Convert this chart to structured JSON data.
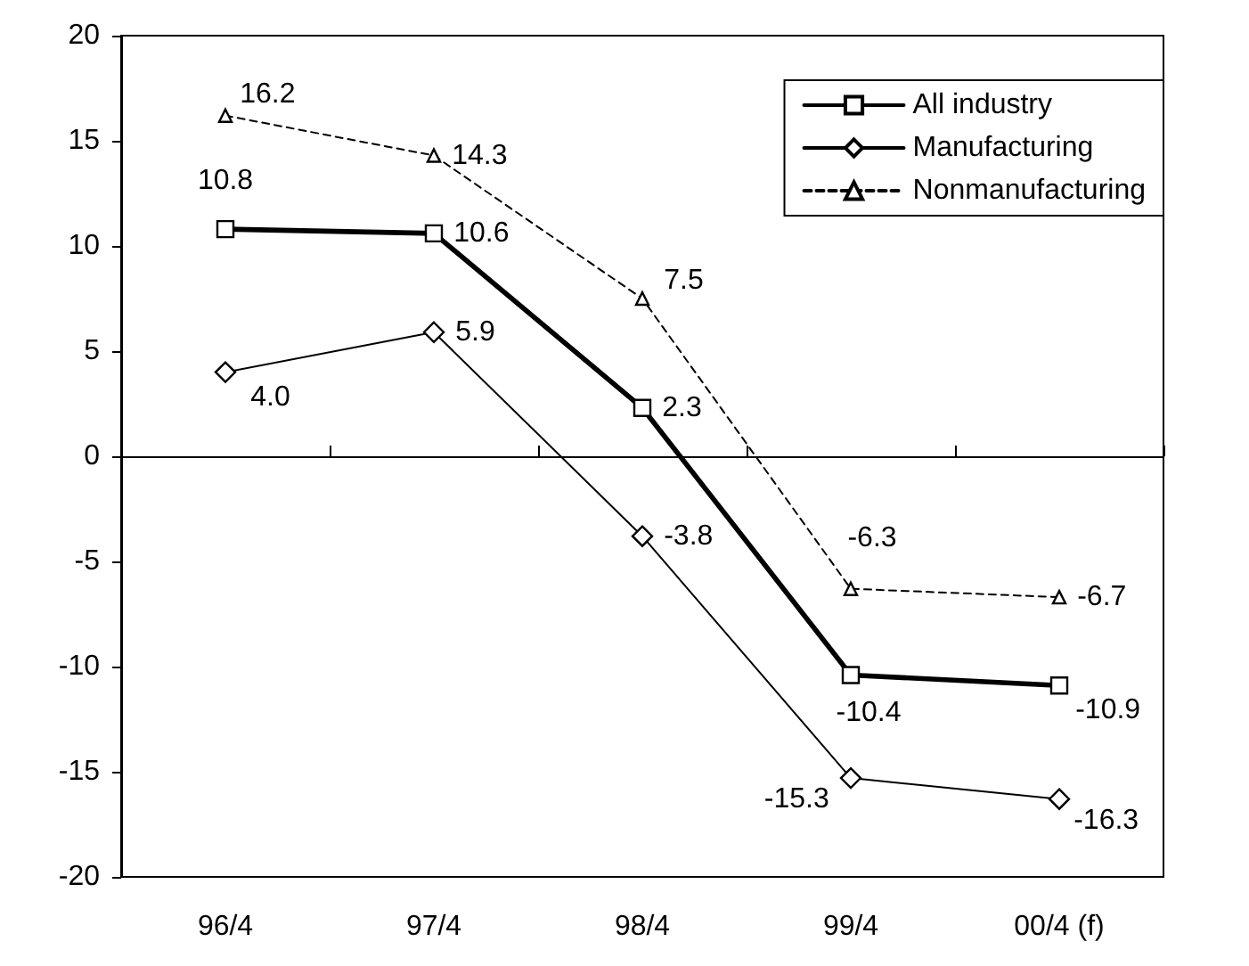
{
  "chart_data": {
    "type": "line",
    "categories": [
      "96/4",
      "97/4",
      "98/4",
      "99/4",
      "00/4 (f)"
    ],
    "series": [
      {
        "name": "All industry",
        "color": "#000000",
        "marker": "square",
        "line_style": "solid",
        "values": [
          10.8,
          10.6,
          2.3,
          -10.4,
          -10.9
        ]
      },
      {
        "name": "Manufacturing",
        "color": "#000000",
        "marker": "diamond",
        "line_style": "solid",
        "values": [
          4.0,
          5.9,
          -3.8,
          -15.3,
          -16.3
        ]
      },
      {
        "name": "Nonmanufacturing",
        "color": "#000000",
        "marker": "triangle",
        "line_style": "dashed",
        "values": [
          16.2,
          14.3,
          7.5,
          -6.3,
          -6.7
        ]
      }
    ],
    "ylim": [
      -20,
      20
    ],
    "yticks": [
      -20,
      -15,
      -10,
      -5,
      0,
      5,
      10,
      15,
      20
    ],
    "value_labels": [
      [
        "10.8",
        "10.6",
        "2.3",
        "-10.4",
        "-10.9"
      ],
      [
        "4.0",
        "5.9",
        "-3.8",
        "-15.3",
        "-16.3"
      ],
      [
        "16.2",
        "14.3",
        "7.5",
        "-6.3",
        "-6.7"
      ]
    ],
    "legend": "top right"
  }
}
